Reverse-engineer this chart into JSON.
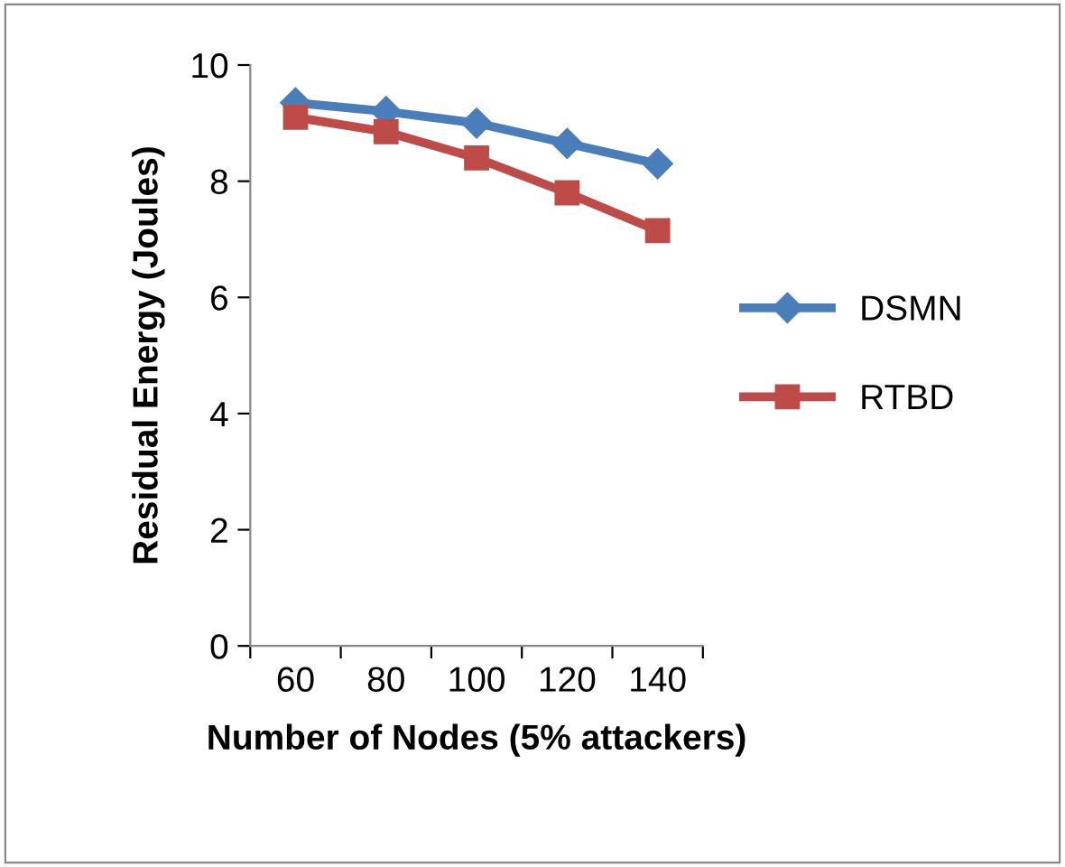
{
  "chart_data": {
    "type": "line",
    "xlabel": "Number of Nodes (5% attackers)",
    "ylabel": "Residual Energy (Joules)",
    "categories": [
      "60",
      "80",
      "100",
      "120",
      "140"
    ],
    "series": [
      {
        "name": "DSMN",
        "color": "#4a7ebb",
        "marker": "diamond",
        "values": [
          9.35,
          9.2,
          9.0,
          8.65,
          8.3
        ]
      },
      {
        "name": "RTBD",
        "color": "#be4b48",
        "marker": "square",
        "values": [
          9.1,
          8.85,
          8.4,
          7.8,
          7.15
        ]
      }
    ],
    "ylim": [
      0,
      10
    ],
    "yticks": [
      0,
      2,
      4,
      6,
      8,
      10
    ],
    "grid": false,
    "legend": "right",
    "line_style": "solid"
  }
}
